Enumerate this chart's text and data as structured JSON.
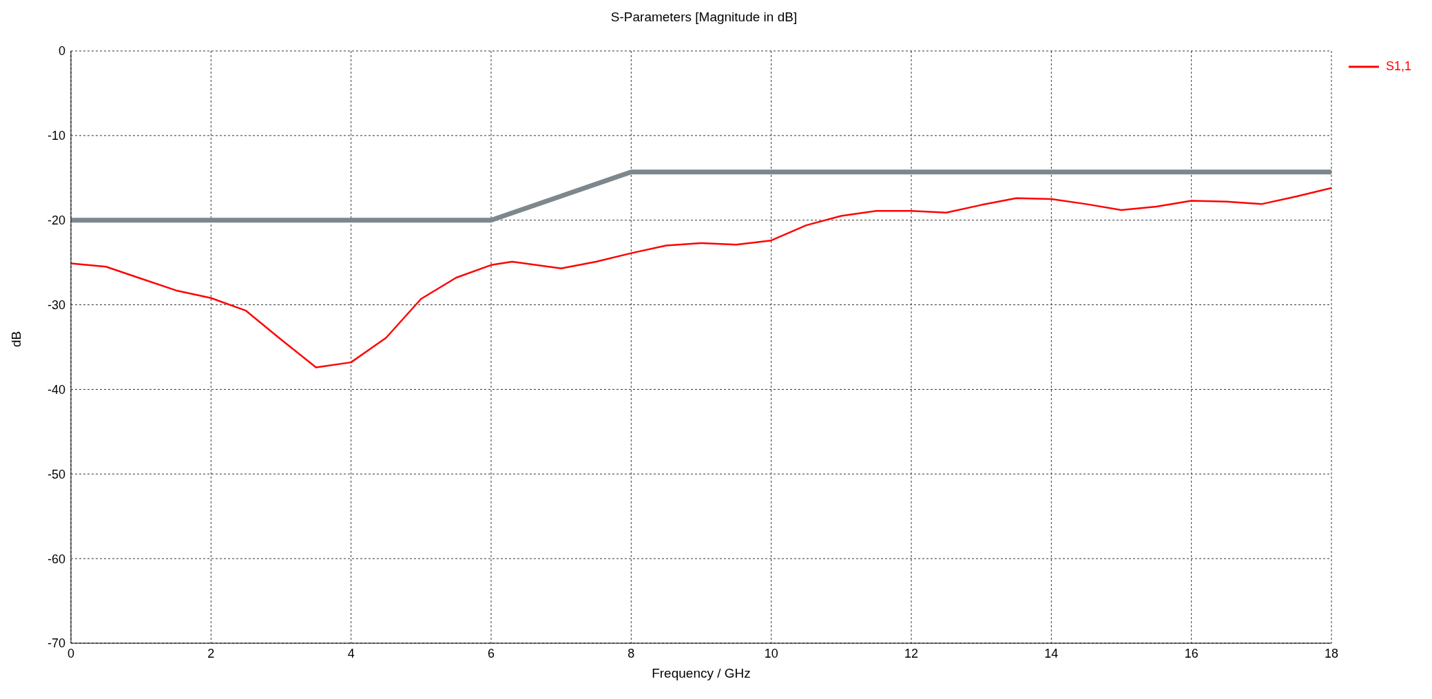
{
  "chart_data": {
    "type": "line",
    "title": "S-Parameters [Magnitude in dB]",
    "xlabel": "Frequency / GHz",
    "ylabel": "dB",
    "xlim": [
      0,
      18
    ],
    "xticks": [
      0,
      2,
      4,
      6,
      8,
      10,
      12,
      14,
      16,
      18
    ],
    "ylim": [
      -70,
      0
    ],
    "yticks": [
      -70,
      -60,
      -50,
      -40,
      -30,
      -20,
      -10,
      0
    ],
    "grid": true,
    "legend": "top right",
    "line_style": "solid",
    "marker": "none",
    "series": [
      {
        "name": "S1,1",
        "color": "#ff0000",
        "x": [
          0,
          0.5,
          1,
          1.5,
          2,
          2.5,
          3,
          3.5,
          4,
          4.5,
          5,
          5.5,
          6,
          6.3,
          7,
          7.5,
          8,
          8.5,
          9,
          9.5,
          10,
          10.5,
          11,
          11.5,
          12,
          12.5,
          13,
          13.5,
          14,
          14.5,
          15,
          15.5,
          16,
          16.5,
          17,
          17.5,
          18
        ],
        "values": [
          -25.1,
          -25.5,
          -26.9,
          -28.3,
          -29.2,
          -30.7,
          -34.1,
          -37.4,
          -36.8,
          -33.9,
          -29.3,
          -26.8,
          -25.3,
          -24.9,
          -25.7,
          -24.9,
          -23.9,
          -23,
          -22.7,
          -22.9,
          -22.4,
          -20.6,
          -19.5,
          -18.9,
          -18.9,
          -19.1,
          -18.2,
          -17.4,
          -17.5,
          -18.1,
          -18.8,
          -18.4,
          -17.7,
          -17.8,
          -18.1,
          -17.2,
          -16.2
        ]
      },
      {
        "color": "#7d878d",
        "x": [
          0,
          6,
          8,
          18
        ],
        "values": [
          -20,
          -20,
          -14.3,
          -14.3
        ]
      }
    ]
  }
}
